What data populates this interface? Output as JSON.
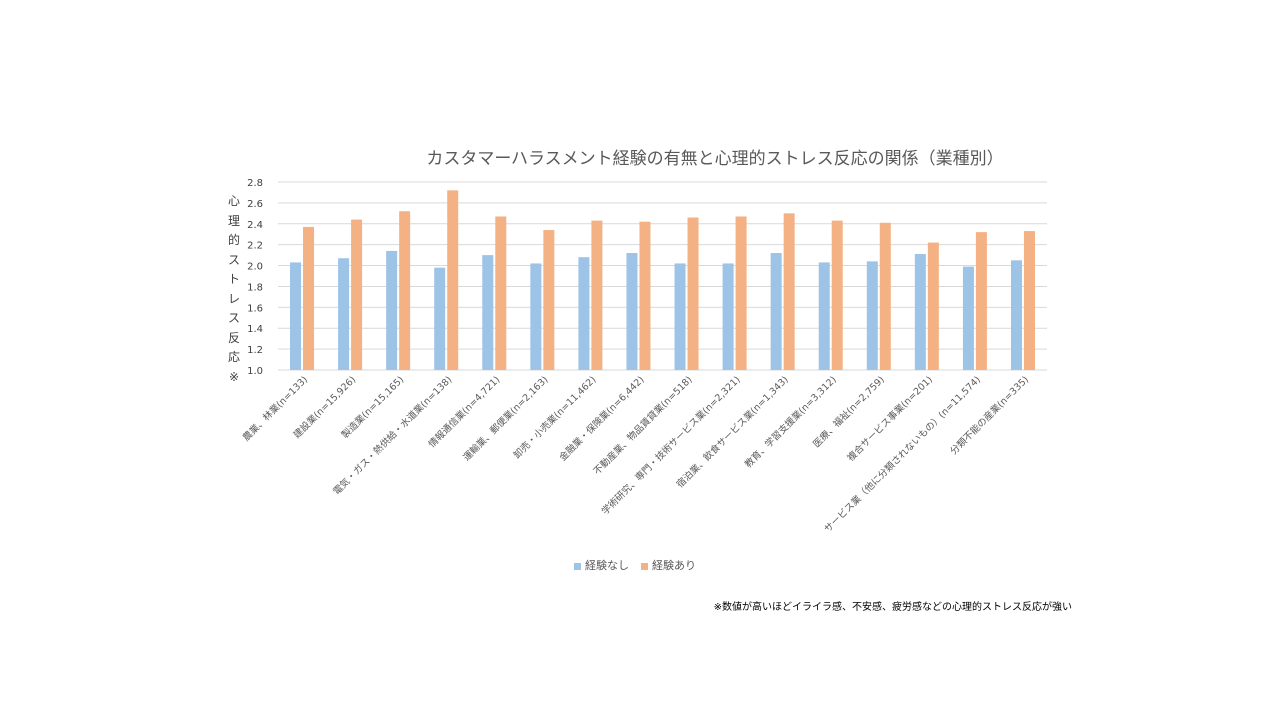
{
  "chart_data": {
    "type": "bar",
    "title": "カスタマーハラスメント経験の有無と心理的ストレス反応の関係（業種別）",
    "ylabel": "心理的ストレス反応※",
    "xlabel": "",
    "ylim": [
      1.0,
      2.8
    ],
    "yticks": [
      "1.0",
      "1.2",
      "1.4",
      "1.6",
      "1.8",
      "2.0",
      "2.2",
      "2.4",
      "2.6",
      "2.8"
    ],
    "grid": true,
    "legend_position": "bottom",
    "categories": [
      "農業、林業(n=133)",
      "建設業(n=15,926)",
      "製造業(n=15,165)",
      "電気・ガス・熱供給・水道業(n=138)",
      "情報通信業(n=4,721)",
      "運輸業、郵便業(n=2,163)",
      "卸売・小売業(n=11,462)",
      "金融業・保険業(n=6,442)",
      "不動産業、物品賃貸業(n=518)",
      "学術研究、専門・技術サービス業(n=2,321)",
      "宿泊業、飲食サービス業(n=1,343)",
      "教育、学習支援業(n=3,312)",
      "医療、福祉(n=2,759)",
      "複合サービス事業(n=201)",
      "サービス業（他に分類されないもの）(n=11,574)",
      "分類不能の産業(n=335)"
    ],
    "series": [
      {
        "name": "経験なし",
        "color": "#9DC3E6",
        "values": [
          2.03,
          2.07,
          2.14,
          1.98,
          2.1,
          2.02,
          2.08,
          2.12,
          2.02,
          2.02,
          2.12,
          2.03,
          2.04,
          2.11,
          1.99,
          2.05
        ]
      },
      {
        "name": "経験あり",
        "color": "#F4B183",
        "values": [
          2.37,
          2.44,
          2.52,
          2.72,
          2.47,
          2.34,
          2.43,
          2.42,
          2.46,
          2.47,
          2.5,
          2.43,
          2.41,
          2.22,
          2.32,
          2.33
        ]
      }
    ],
    "footnote": "※数値が高いほどイライラ感、不安感、疲労感などの心理的ストレス反応が強い"
  }
}
